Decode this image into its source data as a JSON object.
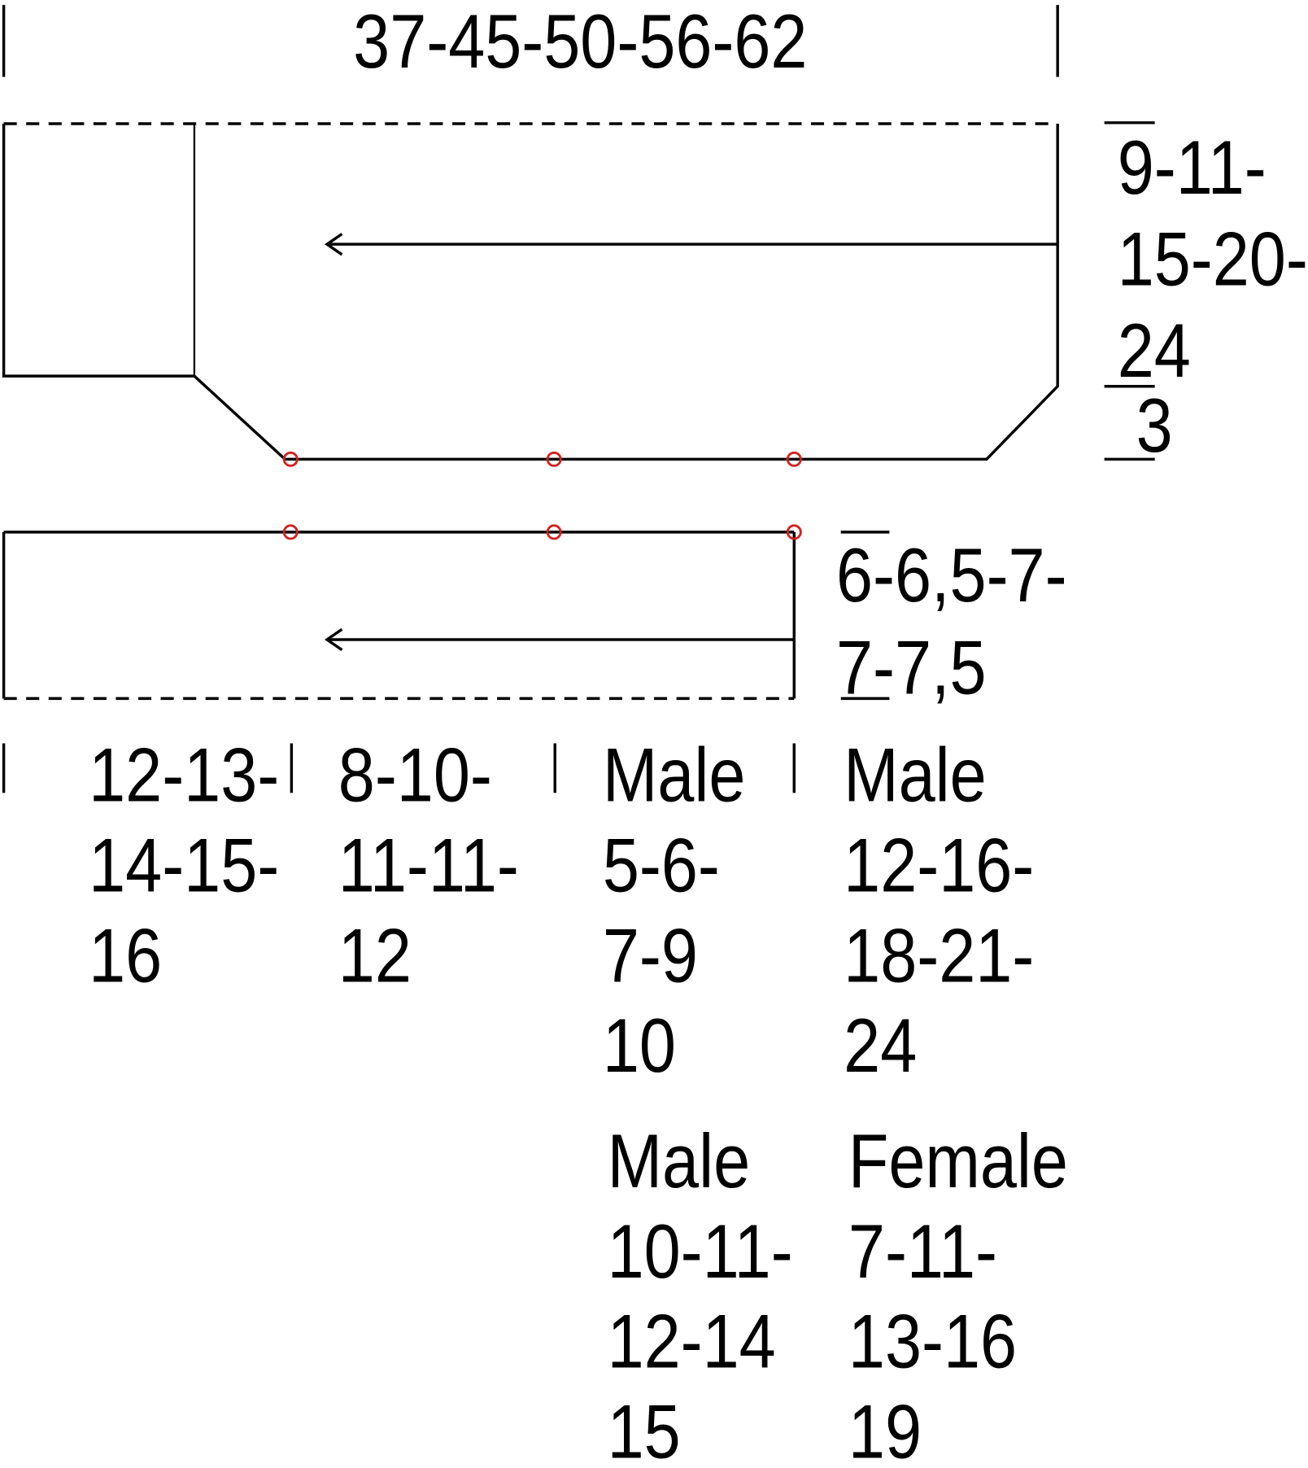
{
  "top_width": "37-45-50-56-62",
  "upper_height": {
    "lines": [
      "9-11-",
      "15-20-",
      "24"
    ],
    "edge": "3"
  },
  "lower_height": {
    "lines": [
      "6-6,5-7-",
      "7-7,5"
    ]
  },
  "bottom": [
    {
      "lines": [
        "12-13-",
        "14-15-",
        "16"
      ]
    },
    {
      "lines": [
        "8-10-",
        "11-11-",
        "12"
      ]
    },
    {
      "label": "Male",
      "lines": [
        "5-6-",
        "7-9",
        "10"
      ]
    },
    {
      "label": "Male",
      "lines": [
        "12-16-",
        "18-21-",
        "24"
      ]
    },
    {
      "label": "Male",
      "lines": [
        "10-11-",
        "12-14",
        "15"
      ]
    },
    {
      "label": "Female",
      "lines": [
        "7-11-",
        "13-16",
        "19"
      ]
    }
  ]
}
